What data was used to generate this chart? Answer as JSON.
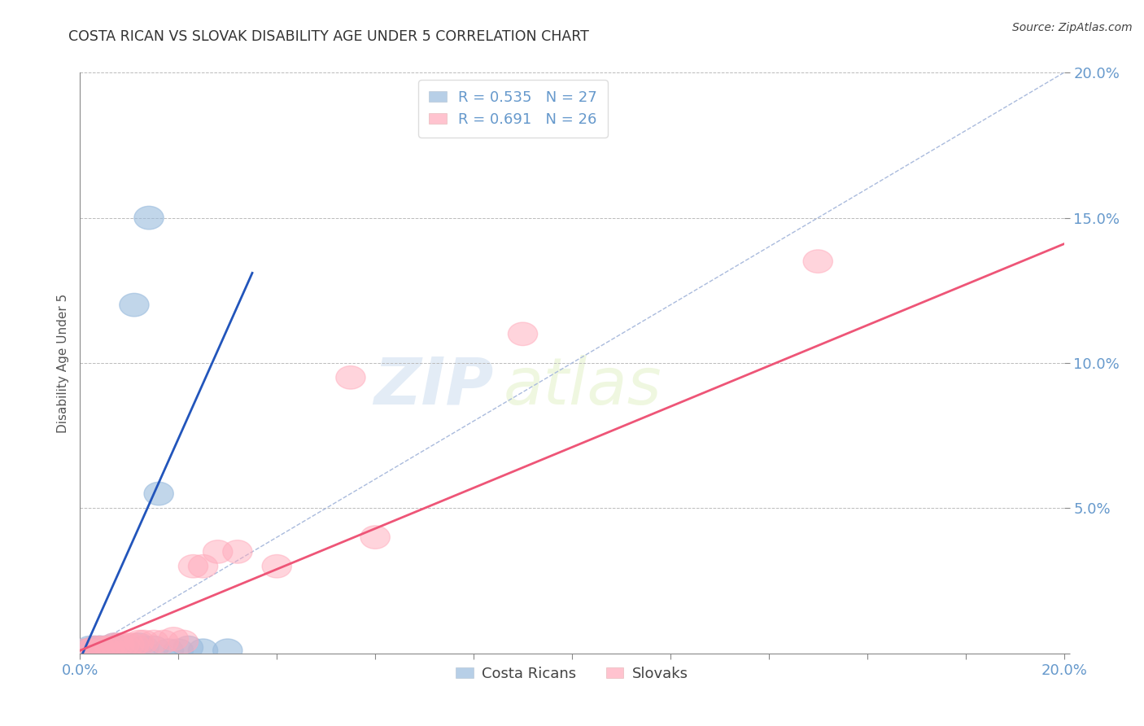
{
  "title": "COSTA RICAN VS SLOVAK DISABILITY AGE UNDER 5 CORRELATION CHART",
  "source_text": "Source: ZipAtlas.com",
  "ylabel": "Disability Age Under 5",
  "xlim": [
    0.0,
    0.2
  ],
  "ylim": [
    0.0,
    0.2
  ],
  "legend_r1": "R = 0.535",
  "legend_n1": "N = 27",
  "legend_r2": "R = 0.691",
  "legend_n2": "N = 26",
  "blue_color": "#99BBDD",
  "pink_color": "#FFAABB",
  "blue_line_color": "#2255BB",
  "pink_line_color": "#EE5577",
  "diag_color": "#AABBDD",
  "grid_color": "#BBBBBB",
  "title_color": "#333333",
  "axis_label_color": "#6699CC",
  "background_color": "#FFFFFF",
  "watermark_zip": "ZIP",
  "watermark_atlas": "atlas",
  "blue_scatter_x": [
    0.001,
    0.002,
    0.002,
    0.003,
    0.003,
    0.004,
    0.004,
    0.005,
    0.005,
    0.006,
    0.006,
    0.007,
    0.007,
    0.008,
    0.009,
    0.01,
    0.011,
    0.012,
    0.013,
    0.014,
    0.015,
    0.016,
    0.018,
    0.02,
    0.022,
    0.025,
    0.03
  ],
  "blue_scatter_y": [
    0.001,
    0.001,
    0.002,
    0.001,
    0.002,
    0.002,
    0.002,
    0.001,
    0.002,
    0.002,
    0.002,
    0.002,
    0.003,
    0.002,
    0.001,
    0.002,
    0.12,
    0.003,
    0.002,
    0.15,
    0.002,
    0.055,
    0.001,
    0.001,
    0.002,
    0.001,
    0.001
  ],
  "pink_scatter_x": [
    0.001,
    0.002,
    0.003,
    0.004,
    0.005,
    0.006,
    0.007,
    0.008,
    0.009,
    0.01,
    0.011,
    0.012,
    0.013,
    0.015,
    0.017,
    0.019,
    0.021,
    0.023,
    0.025,
    0.028,
    0.032,
    0.04,
    0.055,
    0.06,
    0.09,
    0.15
  ],
  "pink_scatter_y": [
    0.001,
    0.001,
    0.002,
    0.002,
    0.002,
    0.002,
    0.003,
    0.003,
    0.003,
    0.003,
    0.003,
    0.004,
    0.004,
    0.004,
    0.004,
    0.005,
    0.004,
    0.03,
    0.03,
    0.035,
    0.035,
    0.03,
    0.095,
    0.04,
    0.11,
    0.135
  ],
  "blue_line_x": [
    0.0,
    0.035
  ],
  "blue_line_intercept": -0.002,
  "blue_line_slope": 3.8,
  "pink_line_x": [
    0.0,
    0.2
  ],
  "pink_line_intercept": 0.001,
  "pink_line_slope": 0.7
}
